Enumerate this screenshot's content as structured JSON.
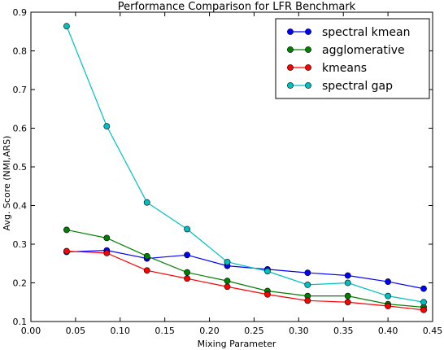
{
  "chart_data": {
    "type": "line",
    "title": "Performance Comparison for LFR Benchmark",
    "xlabel": "Mixing Parameter",
    "ylabel": "Avg. Score (NMI,ARS)",
    "xlim": [
      0.0,
      0.45
    ],
    "ylim": [
      0.1,
      0.9
    ],
    "xticks": [
      "0.00",
      "0.05",
      "0.10",
      "0.15",
      "0.20",
      "0.25",
      "0.30",
      "0.35",
      "0.40",
      "0.45"
    ],
    "yticks": [
      "0.1",
      "0.2",
      "0.3",
      "0.4",
      "0.5",
      "0.6",
      "0.7",
      "0.8",
      "0.9"
    ],
    "grid": false,
    "legend_position": "top-right",
    "x": [
      0.04,
      0.085,
      0.13,
      0.175,
      0.22,
      0.265,
      0.31,
      0.355,
      0.4,
      0.44
    ],
    "series": [
      {
        "name": "spectral kmean",
        "color": "#0000ff",
        "values": [
          0.28,
          0.284,
          0.263,
          0.272,
          0.244,
          0.235,
          0.226,
          0.219,
          0.203,
          0.185
        ]
      },
      {
        "name": "agglomerative",
        "color": "#008000",
        "values": [
          0.337,
          0.316,
          0.269,
          0.227,
          0.205,
          0.179,
          0.166,
          0.166,
          0.145,
          0.137
        ]
      },
      {
        "name": "kmeans",
        "color": "#ff0000",
        "values": [
          0.282,
          0.277,
          0.232,
          0.211,
          0.19,
          0.17,
          0.154,
          0.15,
          0.14,
          0.13
        ]
      },
      {
        "name": "spectral gap",
        "color": "#00bfbf",
        "values": [
          0.864,
          0.605,
          0.408,
          0.339,
          0.254,
          0.23,
          0.195,
          0.2,
          0.166,
          0.15
        ]
      }
    ]
  }
}
